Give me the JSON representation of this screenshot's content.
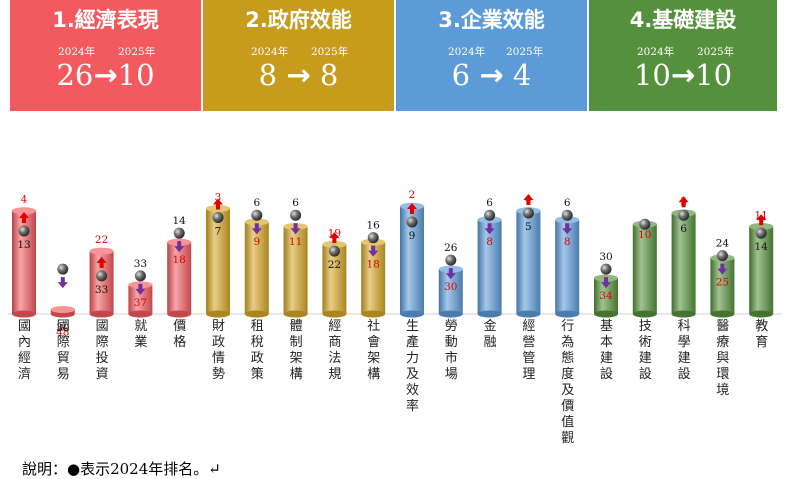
{
  "categories_groups": [
    {
      "title": "1.經濟表現",
      "year_from": "2024年",
      "year_to": "2025年",
      "rank_from": "26",
      "rank_to": "10",
      "arrow": "→",
      "color": "#f25a5f"
    },
    {
      "title": "2.政府效能",
      "year_from": "2024年",
      "year_to": "2025年",
      "rank_from": "8",
      "rank_to": "8",
      "arrow": "→",
      "color": "#c79b1c"
    },
    {
      "title": "3.企業效能",
      "year_from": "2024年",
      "year_to": "2025年",
      "rank_from": "6",
      "rank_to": "4",
      "arrow": "→",
      "color": "#5c9bd8"
    },
    {
      "title": "4.基礎建設",
      "year_from": "2024年",
      "year_to": "2025年",
      "rank_from": "10",
      "rank_to": "10",
      "arrow": "→",
      "color": "#55913c"
    }
  ],
  "note": "說明：●表示2024年排名。↵",
  "chart_data": {
    "type": "bar",
    "title": "",
    "ylim": [
      1,
      50
    ],
    "y_inverted": true,
    "categories": [
      "國內經濟",
      "國際貿易",
      "國際投資",
      "就業",
      "價格",
      "財政情勢",
      "租稅政策",
      "體制架構",
      "經商法規",
      "社會架構",
      "生產力及效率",
      "勞動市場",
      "金融",
      "經營管理",
      "行為態度及價值觀",
      "基本建設",
      "技術建設",
      "科學建設",
      "醫療與環境",
      "教育"
    ],
    "series": [
      {
        "name": "2025年",
        "values": [
          4,
          48,
          22,
          37,
          18,
          3,
          9,
          11,
          19,
          18,
          2,
          30,
          8,
          4,
          8,
          34,
          10,
          5,
          25,
          11
        ]
      },
      {
        "name": "2024年",
        "values": [
          13,
          30,
          33,
          33,
          14,
          7,
          6,
          6,
          22,
          16,
          9,
          26,
          6,
          5,
          6,
          30,
          10,
          6,
          24,
          14
        ]
      }
    ],
    "group_colors": [
      "#f25a5f",
      "#f25a5f",
      "#f25a5f",
      "#f25a5f",
      "#f25a5f",
      "#d6a624",
      "#d6a624",
      "#d6a624",
      "#d6a624",
      "#d6a624",
      "#5c9bd8",
      "#5c9bd8",
      "#5c9bd8",
      "#5c9bd8",
      "#5c9bd8",
      "#55913c",
      "#55913c",
      "#55913c",
      "#55913c",
      "#55913c"
    ],
    "legend": "bottom-left"
  }
}
